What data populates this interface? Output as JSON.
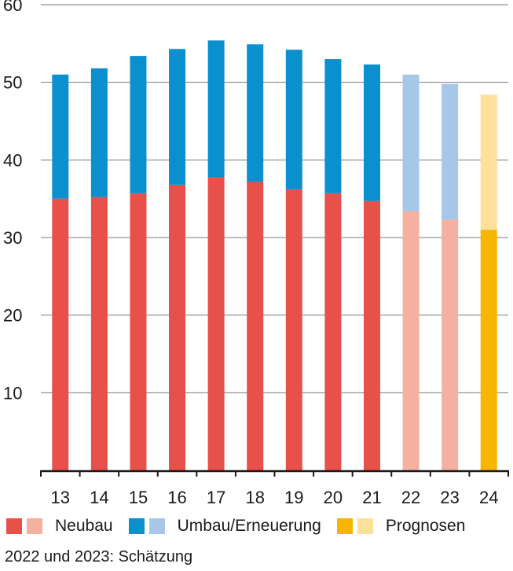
{
  "chart_data": {
    "type": "bar",
    "stacked": true,
    "categories": [
      "13",
      "14",
      "15",
      "16",
      "17",
      "18",
      "19",
      "20",
      "21",
      "22",
      "23",
      "24"
    ],
    "series": [
      {
        "name": "Neubau",
        "values": [
          35.0,
          35.2,
          35.7,
          36.8,
          37.8,
          37.2,
          36.2,
          35.7,
          34.7,
          33.4,
          32.3,
          31.0
        ]
      },
      {
        "name": "Umbau/Erneuerung",
        "values": [
          16.0,
          16.6,
          17.7,
          17.5,
          17.6,
          17.7,
          18.0,
          17.3,
          17.6,
          17.6,
          17.5,
          17.4
        ]
      }
    ],
    "estimated_categories": [
      "22",
      "23"
    ],
    "forecast_categories": [
      "24"
    ],
    "ylim": [
      0,
      60
    ],
    "yticks": [
      10,
      20,
      30,
      40,
      50,
      60
    ],
    "grid": true,
    "xlabel": "",
    "ylabel": "",
    "title": "",
    "colors": {
      "neubau": "#e8504a",
      "neubau_light": "#f5b1a0",
      "umbau": "#0a8fcf",
      "umbau_light": "#a7c7e8",
      "prognose": "#f8b500",
      "prognose_light": "#fde09a",
      "grid": "#7a7a7a",
      "axis": "#1a1a1a"
    }
  },
  "legend": {
    "items": [
      {
        "label": "Neubau",
        "icon": "swatch-red",
        "color_dark": "#e8504a",
        "color_light": "#f5b1a0"
      },
      {
        "label": "Umbau/Erneuerung",
        "icon": "swatch-blue",
        "color_dark": "#0a8fcf",
        "color_light": "#a7c7e8"
      },
      {
        "label": "Prognosen",
        "icon": "swatch-yellow",
        "color_dark": "#f8b500",
        "color_light": "#fde09a"
      }
    ]
  },
  "footnote": "2022 und 2023: Schätzung"
}
